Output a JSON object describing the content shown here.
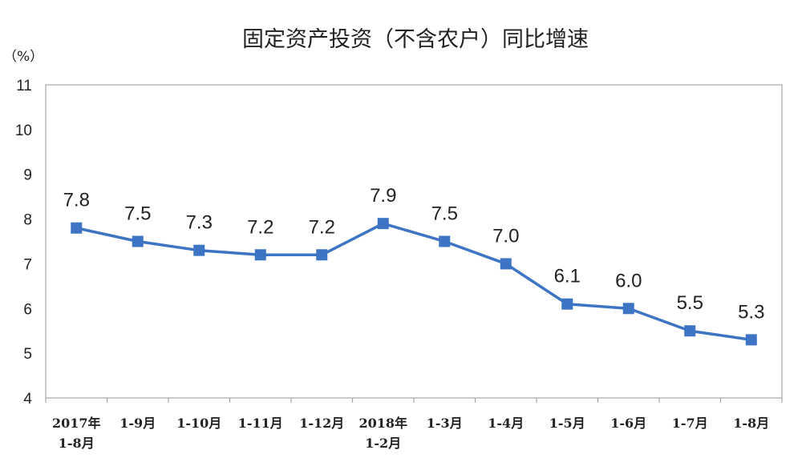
{
  "chart_data": {
    "type": "line",
    "title": "固定资产投资（不含农户）同比增速",
    "unit_label": "（%）",
    "xlabel": "",
    "ylabel": "",
    "ylim": [
      4,
      11
    ],
    "yticks": [
      4,
      5,
      6,
      7,
      8,
      9,
      10,
      11
    ],
    "grid": false,
    "legend": "none",
    "categories": [
      [
        "2017年",
        "1-8月"
      ],
      [
        "1-9月"
      ],
      [
        "1-10月"
      ],
      [
        "1-11月"
      ],
      [
        "1-12月"
      ],
      [
        "2018年",
        "1-2月"
      ],
      [
        "1-3月"
      ],
      [
        "1-4月"
      ],
      [
        "1-5月"
      ],
      [
        "1-6月"
      ],
      [
        "1-7月"
      ],
      [
        "1-8月"
      ]
    ],
    "values": [
      7.8,
      7.5,
      7.3,
      7.2,
      7.2,
      7.9,
      7.5,
      7.0,
      6.1,
      6.0,
      5.5,
      5.3
    ],
    "data_labels": [
      "7.8",
      "7.5",
      "7.3",
      "7.2",
      "7.2",
      "7.9",
      "7.5",
      "7.0",
      "6.1",
      "6.0",
      "5.5",
      "5.3"
    ],
    "line_color": "#3D74C4",
    "marker_color": "#3D74C4",
    "axis_color": "#A6A6A6"
  }
}
